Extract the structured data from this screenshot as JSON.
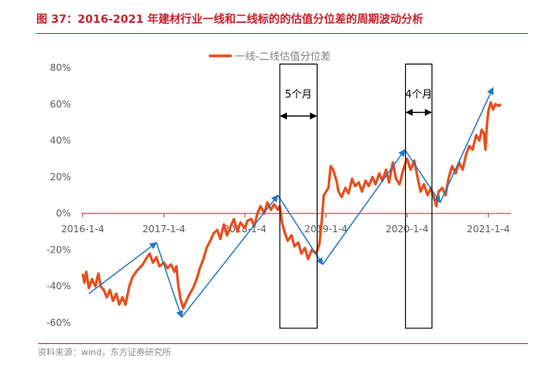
{
  "title": "图 37：2016-2021 年建材行业一线和二线标的的估值分位差的周期波动分析",
  "source": "资料来源：wind，东方证券研究所",
  "colors": {
    "series": "#e84e1c",
    "arrow": "#1f77c4",
    "title": "#c8202a",
    "zero": "#c8202a"
  },
  "chart_data": {
    "type": "line",
    "title": "",
    "xlabel": "",
    "ylabel": "",
    "x_range": [
      "2016-01-01",
      "2021-04-15"
    ],
    "ylim": [
      -0.6,
      0.8
    ],
    "y_ticks": [
      -0.6,
      -0.4,
      -0.2,
      0,
      0.2,
      0.4,
      0.6,
      0.8
    ],
    "y_tick_labels": [
      "-60%",
      "-40%",
      "-20%",
      "0%",
      "20%",
      "40%",
      "60%",
      "80%"
    ],
    "x_ticks": [
      "2016-01-04",
      "2017-01-04",
      "2018-01-04",
      "2019-01-04",
      "2020-01-04",
      "2021-01-04"
    ],
    "x_tick_labels": [
      "2016-1-4",
      "2017-1-4",
      "2018-1-4",
      "2019-1-4",
      "2020-1-4",
      "2021-1-4"
    ],
    "legend": {
      "position": "top-center",
      "entries": [
        "一线-二线估值分位差"
      ]
    },
    "grid": false,
    "series": [
      {
        "name": "一线-二线估值分位差",
        "points": [
          [
            "2016-01-04",
            -0.33
          ],
          [
            "2016-01-12",
            -0.38
          ],
          [
            "2016-01-20",
            -0.32
          ],
          [
            "2016-02-01",
            -0.41
          ],
          [
            "2016-02-15",
            -0.36
          ],
          [
            "2016-03-01",
            -0.4
          ],
          [
            "2016-03-15",
            -0.33
          ],
          [
            "2016-03-25",
            -0.4
          ],
          [
            "2016-04-08",
            -0.42
          ],
          [
            "2016-04-22",
            -0.46
          ],
          [
            "2016-05-06",
            -0.42
          ],
          [
            "2016-05-20",
            -0.48
          ],
          [
            "2016-06-03",
            -0.44
          ],
          [
            "2016-06-17",
            -0.5
          ],
          [
            "2016-07-01",
            -0.46
          ],
          [
            "2016-07-15",
            -0.5
          ],
          [
            "2016-08-01",
            -0.4
          ],
          [
            "2016-08-15",
            -0.35
          ],
          [
            "2016-09-01",
            -0.32
          ],
          [
            "2016-09-15",
            -0.3
          ],
          [
            "2016-10-01",
            -0.28
          ],
          [
            "2016-10-15",
            -0.25
          ],
          [
            "2016-11-01",
            -0.22
          ],
          [
            "2016-11-15",
            -0.27
          ],
          [
            "2016-12-01",
            -0.24
          ],
          [
            "2016-12-15",
            -0.29
          ],
          [
            "2017-01-04",
            -0.27
          ],
          [
            "2017-01-20",
            -0.3
          ],
          [
            "2017-02-05",
            -0.28
          ],
          [
            "2017-02-20",
            -0.32
          ],
          [
            "2017-03-01",
            -0.29
          ],
          [
            "2017-03-10",
            -0.4
          ],
          [
            "2017-03-20",
            -0.47
          ],
          [
            "2017-04-01",
            -0.52
          ],
          [
            "2017-04-15",
            -0.48
          ],
          [
            "2017-05-01",
            -0.44
          ],
          [
            "2017-05-15",
            -0.41
          ],
          [
            "2017-06-01",
            -0.36
          ],
          [
            "2017-06-15",
            -0.3
          ],
          [
            "2017-07-01",
            -0.25
          ],
          [
            "2017-07-15",
            -0.19
          ],
          [
            "2017-08-01",
            -0.15
          ],
          [
            "2017-08-15",
            -0.11
          ],
          [
            "2017-09-01",
            -0.09
          ],
          [
            "2017-09-15",
            -0.14
          ],
          [
            "2017-10-01",
            -0.06
          ],
          [
            "2017-10-15",
            -0.12
          ],
          [
            "2017-11-01",
            -0.07
          ],
          [
            "2017-11-15",
            -0.03
          ],
          [
            "2017-12-01",
            -0.1
          ],
          [
            "2017-12-15",
            -0.05
          ],
          [
            "2018-01-04",
            -0.08
          ],
          [
            "2018-01-15",
            -0.04
          ],
          [
            "2018-02-01",
            -0.03
          ],
          [
            "2018-02-15",
            -0.07
          ],
          [
            "2018-03-01",
            0.0
          ],
          [
            "2018-03-15",
            0.04
          ],
          [
            "2018-04-01",
            0.0
          ],
          [
            "2018-04-15",
            0.06
          ],
          [
            "2018-05-01",
            0.02
          ],
          [
            "2018-05-15",
            0.05
          ],
          [
            "2018-06-01",
            0.02
          ],
          [
            "2018-06-10",
            0.04
          ],
          [
            "2018-06-20",
            -0.05
          ],
          [
            "2018-07-01",
            -0.1
          ],
          [
            "2018-07-15",
            -0.15
          ],
          [
            "2018-08-01",
            -0.12
          ],
          [
            "2018-08-15",
            -0.18
          ],
          [
            "2018-09-01",
            -0.16
          ],
          [
            "2018-09-15",
            -0.22
          ],
          [
            "2018-10-01",
            -0.19
          ],
          [
            "2018-10-15",
            -0.25
          ],
          [
            "2018-11-01",
            -0.2
          ],
          [
            "2018-11-20",
            -0.22
          ],
          [
            "2018-12-05",
            -0.17
          ],
          [
            "2018-12-15",
            -0.05
          ],
          [
            "2018-12-25",
            0.1
          ],
          [
            "2019-01-04",
            0.12
          ],
          [
            "2019-01-15",
            0.14
          ],
          [
            "2019-01-25",
            0.26
          ],
          [
            "2019-02-05",
            0.24
          ],
          [
            "2019-02-20",
            0.18
          ],
          [
            "2019-03-01",
            0.12
          ],
          [
            "2019-03-15",
            0.09
          ],
          [
            "2019-04-01",
            0.14
          ],
          [
            "2019-04-15",
            0.11
          ],
          [
            "2019-05-01",
            0.19
          ],
          [
            "2019-05-15",
            0.15
          ],
          [
            "2019-06-01",
            0.17
          ],
          [
            "2019-06-15",
            0.12
          ],
          [
            "2019-07-01",
            0.18
          ],
          [
            "2019-07-15",
            0.15
          ],
          [
            "2019-08-01",
            0.2
          ],
          [
            "2019-08-15",
            0.16
          ],
          [
            "2019-09-01",
            0.22
          ],
          [
            "2019-09-15",
            0.18
          ],
          [
            "2019-10-01",
            0.24
          ],
          [
            "2019-10-15",
            0.17
          ],
          [
            "2019-11-01",
            0.28
          ],
          [
            "2019-11-15",
            0.19
          ],
          [
            "2019-12-01",
            0.16
          ],
          [
            "2019-12-20",
            0.25
          ],
          [
            "2020-01-04",
            0.3
          ],
          [
            "2020-01-20",
            0.24
          ],
          [
            "2020-02-05",
            0.29
          ],
          [
            "2020-02-20",
            0.2
          ],
          [
            "2020-03-05",
            0.12
          ],
          [
            "2020-03-20",
            0.16
          ],
          [
            "2020-04-05",
            0.1
          ],
          [
            "2020-04-20",
            0.14
          ],
          [
            "2020-05-05",
            0.08
          ],
          [
            "2020-05-15",
            0.04
          ],
          [
            "2020-05-25",
            0.12
          ],
          [
            "2020-06-10",
            0.14
          ],
          [
            "2020-06-25",
            0.1
          ],
          [
            "2020-07-10",
            0.2
          ],
          [
            "2020-07-25",
            0.26
          ],
          [
            "2020-08-10",
            0.22
          ],
          [
            "2020-08-25",
            0.28
          ],
          [
            "2020-09-10",
            0.24
          ],
          [
            "2020-09-25",
            0.32
          ],
          [
            "2020-10-10",
            0.37
          ],
          [
            "2020-10-25",
            0.35
          ],
          [
            "2020-11-10",
            0.43
          ],
          [
            "2020-11-25",
            0.4
          ],
          [
            "2020-12-05",
            0.46
          ],
          [
            "2020-12-15",
            0.44
          ],
          [
            "2020-12-22",
            0.35
          ],
          [
            "2020-12-28",
            0.48
          ],
          [
            "2021-01-04",
            0.56
          ],
          [
            "2021-01-15",
            0.61
          ],
          [
            "2021-01-25",
            0.57
          ],
          [
            "2021-02-05",
            0.6
          ],
          [
            "2021-02-20",
            0.59
          ],
          [
            "2021-03-01",
            0.6
          ]
        ]
      }
    ],
    "trend_arrows": [
      [
        [
          "2016-02-01",
          -0.44
        ],
        [
          "2016-12-01",
          -0.16
        ]
      ],
      [
        [
          "2016-12-01",
          -0.16
        ],
        [
          "2017-03-25",
          -0.57
        ]
      ],
      [
        [
          "2017-03-25",
          -0.57
        ],
        [
          "2018-06-01",
          0.1
        ]
      ],
      [
        [
          "2018-06-01",
          0.1
        ],
        [
          "2018-12-20",
          -0.28
        ]
      ],
      [
        [
          "2018-12-20",
          -0.28
        ],
        [
          "2019-12-25",
          0.35
        ]
      ],
      [
        [
          "2019-12-25",
          0.35
        ],
        [
          "2020-06-01",
          0.06
        ]
      ],
      [
        [
          "2020-06-01",
          0.06
        ],
        [
          "2021-01-25",
          0.69
        ]
      ]
    ],
    "annotations": [
      {
        "text": "5个月",
        "x_start": "2018-06-10",
        "x_end": "2018-11-25",
        "y_top": 0.82,
        "y_bottom": -0.63,
        "arrow_y": 0.535,
        "label_y": 0.635
      },
      {
        "text": "4个月",
        "x_start": "2019-12-28",
        "x_end": "2020-04-25",
        "y_top": 0.82,
        "y_bottom": -0.63,
        "arrow_y": 0.555,
        "label_y": 0.635
      }
    ]
  }
}
